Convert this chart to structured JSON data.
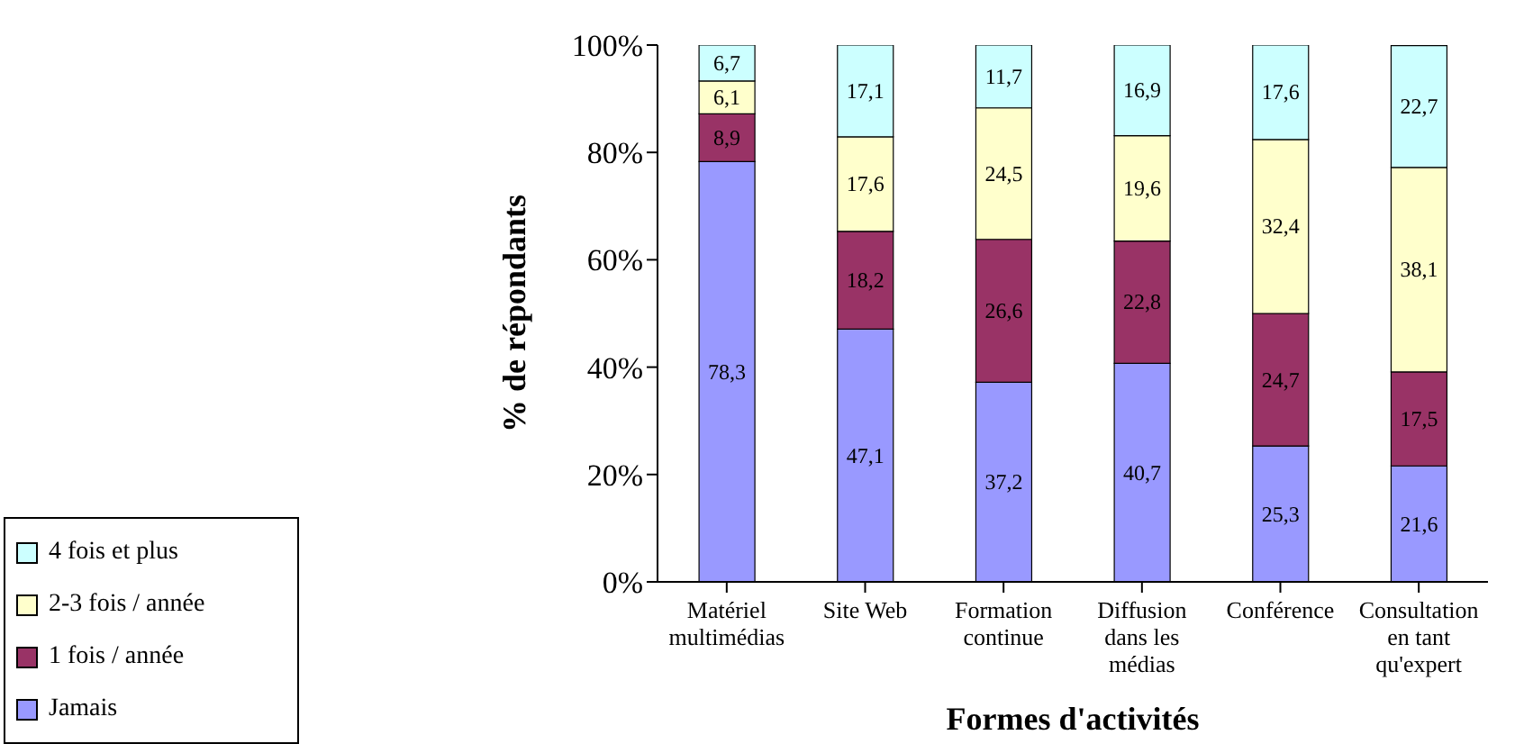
{
  "chart_data": {
    "type": "bar",
    "stacked": true,
    "xlabel": "Formes d'activités",
    "ylabel": "% de répondants",
    "categories": [
      "Matériel multimédias",
      "Site Web",
      "Formation continue",
      "Diffusion dans les médias",
      "Conférence",
      "Consultation en tant qu'expert"
    ],
    "series": [
      {
        "name": "Jamais",
        "color": "#9999ff",
        "values": [
          78.3,
          47.1,
          37.2,
          40.7,
          25.3,
          21.6
        ],
        "value_labels": [
          "78,3",
          "47,1",
          "37,2",
          "40,7",
          "25,3",
          "21,6"
        ]
      },
      {
        "name": "1 fois / année",
        "color": "#993366",
        "values": [
          8.9,
          18.2,
          26.6,
          22.8,
          24.7,
          17.5
        ],
        "value_labels": [
          "8,9",
          "18,2",
          "26,6",
          "22,8",
          "24,7",
          "17,5"
        ]
      },
      {
        "name": "2-3 fois / année",
        "color": "#ffffcc",
        "values": [
          6.1,
          17.6,
          24.5,
          19.6,
          32.4,
          38.1
        ],
        "value_labels": [
          "6,1",
          "17,6",
          "24,5",
          "19,6",
          "32,4",
          "38,1"
        ]
      },
      {
        "name": "4 fois et plus",
        "color": "#ccffff",
        "values": [
          6.7,
          17.1,
          11.7,
          16.9,
          17.6,
          22.7
        ],
        "value_labels": [
          "6,7",
          "17,1",
          "11,7",
          "16,9",
          "17,6",
          "22,7"
        ]
      }
    ],
    "ylim": [
      0,
      100
    ],
    "yticks": [
      {
        "value": 0,
        "label": "0%"
      },
      {
        "value": 20,
        "label": "20%"
      },
      {
        "value": 40,
        "label": "40%"
      },
      {
        "value": 60,
        "label": "60%"
      },
      {
        "value": 80,
        "label": "80%"
      },
      {
        "value": 100,
        "label": "100%"
      }
    ],
    "grid": false,
    "legend": "bottom left"
  }
}
